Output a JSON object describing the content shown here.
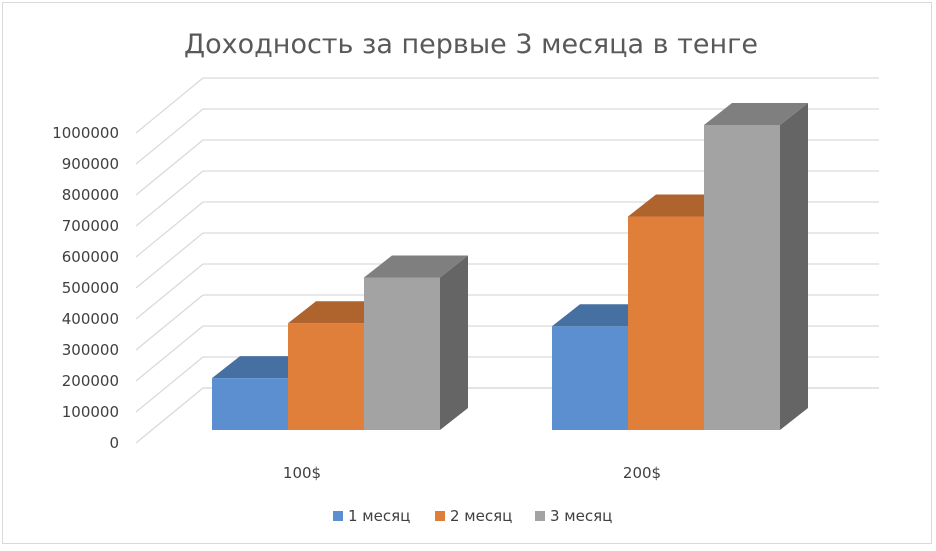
{
  "chart_data": {
    "type": "bar",
    "title": "Доходность за первые 3 месяца в тенге",
    "xlabel": "",
    "ylabel": "",
    "categories": [
      "100$",
      "200$"
    ],
    "series": [
      {
        "name": "1 месяц",
        "values": [
          170000,
          340000
        ],
        "color": "#5b8fd0"
      },
      {
        "name": "2 месяц",
        "values": [
          350000,
          700000
        ],
        "color": "#e07f3a"
      },
      {
        "name": "3 месяц",
        "values": [
          500000,
          1000000
        ],
        "color": "#a3a3a3"
      }
    ],
    "yticks": [
      "0",
      "100000",
      "200000",
      "300000",
      "400000",
      "500000",
      "600000",
      "700000",
      "800000",
      "900000",
      "1000000"
    ],
    "ylim": [
      0,
      1000000
    ],
    "grid": true,
    "legend": "bottom",
    "style": "3d-column"
  }
}
